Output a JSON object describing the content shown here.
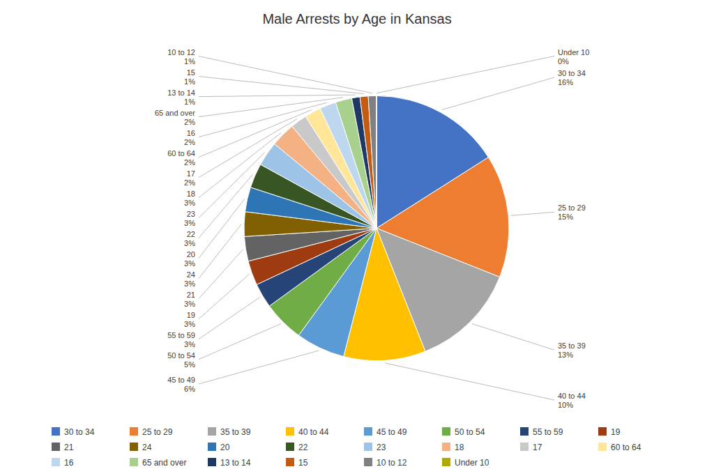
{
  "chart_data": {
    "type": "pie",
    "title": "Male Arrests by Age in Kansas",
    "categories": [
      "30 to 34",
      "25 to 29",
      "35 to 39",
      "40 to 44",
      "45 to 49",
      "50 to 54",
      "55 to 59",
      "19",
      "21",
      "24",
      "20",
      "22",
      "23",
      "18",
      "17",
      "60 to 64",
      "16",
      "65 and over",
      "13 to 14",
      "15",
      "10 to 12",
      "Under 10"
    ],
    "values": [
      16,
      15,
      13,
      10,
      6,
      5,
      3,
      3,
      3,
      3,
      3,
      3,
      3,
      3,
      2,
      2,
      2,
      2,
      1,
      1,
      1,
      0
    ],
    "value_labels": [
      "16%",
      "15%",
      "13%",
      "10%",
      "6%",
      "5%",
      "3%",
      "3%",
      "3%",
      "3%",
      "3%",
      "3%",
      "3%",
      "3%",
      "2%",
      "2%",
      "2%",
      "2%",
      "1%",
      "1%",
      "1%",
      "0%"
    ],
    "colors": [
      "#4472C4",
      "#ED7D31",
      "#A5A5A5",
      "#FFC000",
      "#5B9BD5",
      "#70AD47",
      "#264478",
      "#9E3B11",
      "#636363",
      "#806000",
      "#2E75B6",
      "#375623",
      "#9DC3E6",
      "#F4B183",
      "#C9C9C9",
      "#FFE699",
      "#BDD7EE",
      "#A9D18E",
      "#203864",
      "#C55A11",
      "#808080",
      "#AFAB00"
    ],
    "data_labels": true,
    "legend": "bottom"
  }
}
